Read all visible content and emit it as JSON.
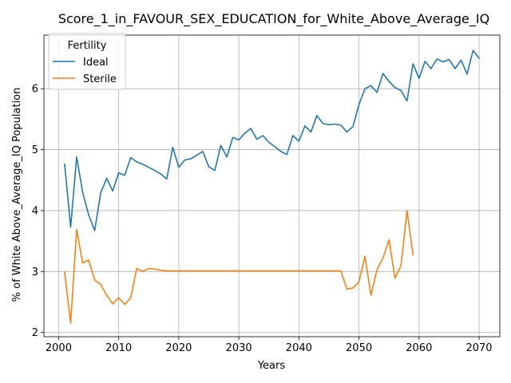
{
  "chart_data": {
    "type": "line",
    "title": "Score_1_in_FAVOUR_SEX_EDUCATION_for_White_Above_Average_IQ",
    "xlabel": "Years",
    "ylabel": "% of White Above_Average_IQ Population",
    "xlim": [
      1997.55,
      2073.45
    ],
    "ylim": [
      1.93,
      6.88
    ],
    "xticks": [
      2000,
      2010,
      2020,
      2030,
      2040,
      2050,
      2060,
      2070
    ],
    "yticks": [
      2,
      3,
      4,
      5,
      6
    ],
    "grid": true,
    "legend": {
      "title": "Fertility",
      "placement": "top-left"
    },
    "series": [
      {
        "name": "Ideal",
        "color": "#1f77b4",
        "x": [
          2001,
          2002,
          2003,
          2004,
          2005,
          2006,
          2007,
          2008,
          2009,
          2010,
          2011,
          2012,
          2013,
          2014,
          2015,
          2016,
          2017,
          2018,
          2019,
          2020,
          2021,
          2022,
          2023,
          2024,
          2025,
          2026,
          2027,
          2028,
          2029,
          2030,
          2031,
          2032,
          2033,
          2034,
          2035,
          2036,
          2037,
          2038,
          2039,
          2040,
          2041,
          2042,
          2043,
          2044,
          2045,
          2046,
          2047,
          2048,
          2049,
          2050,
          2051,
          2052,
          2053,
          2054,
          2055,
          2056,
          2057,
          2058,
          2059,
          2060,
          2061,
          2062,
          2063,
          2064,
          2065,
          2066,
          2067,
          2068,
          2069,
          2070
        ],
        "values": [
          4.76,
          3.73,
          4.88,
          4.3,
          3.93,
          3.67,
          4.29,
          4.53,
          4.32,
          4.62,
          4.58,
          4.87,
          4.8,
          4.76,
          4.71,
          4.66,
          4.6,
          4.52,
          5.04,
          4.71,
          4.83,
          4.85,
          4.91,
          4.97,
          4.72,
          4.66,
          5.07,
          4.88,
          5.2,
          5.16,
          5.27,
          5.35,
          5.17,
          5.23,
          5.12,
          5.05,
          4.97,
          4.92,
          5.23,
          5.14,
          5.39,
          5.29,
          5.56,
          5.43,
          5.41,
          5.42,
          5.4,
          5.29,
          5.38,
          5.74,
          6.0,
          6.05,
          5.94,
          6.25,
          6.12,
          6.02,
          5.97,
          5.8,
          6.41,
          6.17,
          6.45,
          6.33,
          6.49,
          6.44,
          6.48,
          6.33,
          6.47,
          6.24,
          6.63,
          6.5
        ]
      },
      {
        "name": "Sterile",
        "color": "#ff7f0e",
        "x": [
          2001,
          2002,
          2003,
          2004,
          2005,
          2006,
          2007,
          2008,
          2009,
          2010,
          2011,
          2012,
          2013,
          2014,
          2015,
          2016,
          2017,
          2018,
          2019,
          2020,
          2021,
          2022,
          2023,
          2024,
          2025,
          2026,
          2027,
          2028,
          2029,
          2030,
          2031,
          2032,
          2033,
          2034,
          2035,
          2036,
          2037,
          2038,
          2039,
          2040,
          2041,
          2042,
          2043,
          2044,
          2045,
          2046,
          2047,
          2048,
          2049,
          2050,
          2051,
          2052,
          2053,
          2054,
          2055,
          2056,
          2057,
          2058,
          2059
        ],
        "values": [
          2.99,
          2.15,
          3.69,
          3.14,
          3.19,
          2.86,
          2.79,
          2.61,
          2.47,
          2.57,
          2.46,
          2.57,
          3.05,
          3.0,
          3.05,
          3.04,
          3.02,
          3.01,
          3.01,
          3.01,
          3.01,
          3.01,
          3.01,
          3.01,
          3.01,
          3.01,
          3.01,
          3.01,
          3.01,
          3.01,
          3.01,
          3.01,
          3.01,
          3.01,
          3.01,
          3.01,
          3.01,
          3.01,
          3.01,
          3.01,
          3.01,
          3.01,
          3.01,
          3.01,
          3.01,
          3.01,
          3.01,
          2.71,
          2.73,
          2.83,
          3.25,
          2.61,
          3.03,
          3.22,
          3.52,
          2.89,
          3.1,
          4.0,
          3.27
        ]
      }
    ]
  }
}
